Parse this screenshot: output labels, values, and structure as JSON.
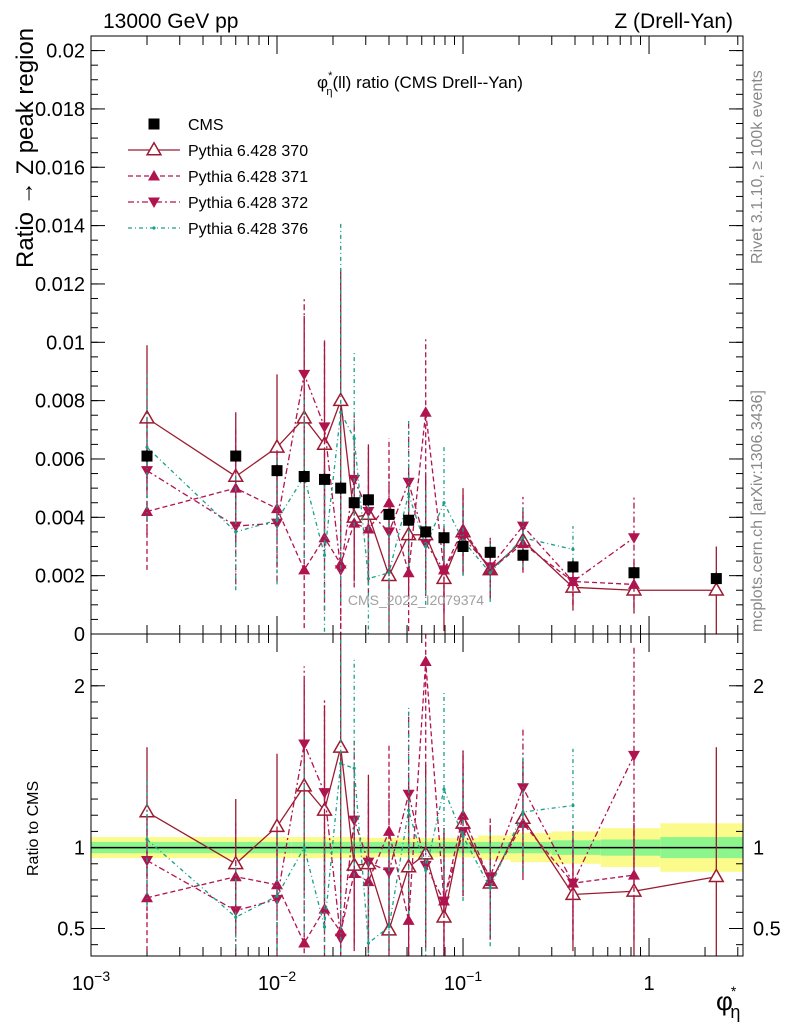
{
  "header": {
    "left": "13000 GeV pp",
    "right": "Z (Drell-Yan)"
  },
  "side_labels": {
    "rivet": "Rivet 3.1.10, ≥ 100k events",
    "mcplots": "mcplots.cern.ch [arXiv:1306.3436]"
  },
  "colors": {
    "data": "#000000",
    "p370": "#9b1b30",
    "p371": "#b0144f",
    "p372": "#b0144f",
    "p376": "#1a9f8a",
    "band_inner": "#8cf58c",
    "band_outer": "#fbfb8c"
  },
  "chart_data": [
    {
      "type": "scatter",
      "panel": "main",
      "title": "φ*η(ll) ratio (CMS Drell--Yan)",
      "ylabel": "Ratio → Z peak region",
      "watermark": "CMS_2022_I2079374",
      "xscale": "log",
      "xlim": [
        0.001,
        3.2
      ],
      "ylim": [
        0,
        0.0205
      ],
      "x_ticks": [
        0.001,
        0.01,
        0.1,
        1
      ],
      "y_ticks": [
        0,
        0.002,
        0.004,
        0.006,
        0.008,
        0.01,
        0.012,
        0.014,
        0.016,
        0.018,
        0.02
      ],
      "y_tick_labels": [
        "0",
        "0.002",
        "0.004",
        "0.006",
        "0.008",
        "0.01",
        "0.012",
        "0.014",
        "0.016",
        "0.018",
        "0.02"
      ],
      "legend": "top-left",
      "x": [
        0.002,
        0.006,
        0.01,
        0.014,
        0.018,
        0.022,
        0.026,
        0.031,
        0.04,
        0.051,
        0.063,
        0.079,
        0.1,
        0.14,
        0.21,
        0.39,
        0.83,
        2.3
      ],
      "series": [
        {
          "name": "CMS",
          "key": "data",
          "marker": "square",
          "values": [
            0.0061,
            0.0061,
            0.0056,
            0.0054,
            0.0053,
            0.005,
            0.0045,
            0.0046,
            0.0041,
            0.0039,
            0.0035,
            0.0033,
            0.003,
            0.0028,
            0.0027,
            0.0023,
            0.0021,
            0.0019
          ],
          "err": [
            0.0002,
            0.0002,
            0.0002,
            0.0002,
            0.0002,
            0.0002,
            0.0002,
            0.0002,
            0.0002,
            0.0002,
            0.0002,
            0.0002,
            0.0002,
            0.0002,
            0.0002,
            0.0002,
            0.0002,
            0.0002
          ]
        },
        {
          "name": "Pythia 6.428 370",
          "key": "p370",
          "marker": "open-triangle-up",
          "dash": "",
          "values": [
            0.0074,
            0.0054,
            0.0064,
            0.0074,
            0.0065,
            0.008,
            0.004,
            0.0041,
            0.002,
            0.0034,
            0.0034,
            0.0019,
            0.0035,
            0.0022,
            0.0032,
            0.0016,
            0.0015,
            0.0015
          ],
          "err": [
            0.0025,
            0.0022,
            0.0025,
            0.0035,
            0.0035,
            0.0045,
            0.0022,
            0.0024,
            0.002,
            0.0022,
            0.002,
            0.0018,
            0.0015,
            0.001,
            0.001,
            0.0008,
            0.0008,
            0.0015
          ]
        },
        {
          "name": "Pythia 6.428 371",
          "key": "p371",
          "marker": "triangle-up",
          "dash": "5,3",
          "values": [
            0.0042,
            0.005,
            0.0043,
            0.0022,
            0.0033,
            0.0024,
            0.0038,
            0.0036,
            0.0045,
            0.0021,
            0.0076,
            0.0022,
            0.0036,
            0.0022,
            0.0031,
            0.0018,
            0.0017,
            null
          ],
          "err": [
            0.002,
            0.002,
            0.002,
            0.002,
            0.0025,
            0.0025,
            0.0022,
            0.0022,
            0.0022,
            0.002,
            0.0025,
            0.0015,
            0.0012,
            0.001,
            0.001,
            0.0008,
            0.0008,
            null
          ]
        },
        {
          "name": "Pythia 6.428 372",
          "key": "p372",
          "marker": "triangle-down",
          "dash": "6,3,2,3",
          "values": [
            0.0056,
            0.0037,
            0.0038,
            0.0089,
            0.0071,
            0.0022,
            0.0053,
            0.0042,
            0.0035,
            0.0052,
            0.0031,
            0.0022,
            0.0033,
            0.0023,
            0.0037,
            0.0018,
            0.0033,
            null
          ],
          "err": [
            0.0022,
            0.002,
            0.002,
            0.0026,
            0.003,
            0.0025,
            0.0022,
            0.0022,
            0.002,
            0.002,
            0.0018,
            0.0014,
            0.0012,
            0.001,
            0.001,
            0.0008,
            0.0014,
            null
          ]
        },
        {
          "name": "Pythia 6.428 376",
          "key": "p376",
          "marker": "dot",
          "dash": "4,3,1,3",
          "values": [
            0.0064,
            0.0035,
            0.0039,
            0.0054,
            0.0027,
            0.0076,
            0.0067,
            0.0019,
            0.0021,
            0.0048,
            0.003,
            0.0045,
            0.0032,
            0.0021,
            0.0033,
            0.0029,
            null,
            null
          ],
          "err": [
            0.0025,
            0.002,
            0.0022,
            0.0028,
            0.003,
            0.0065,
            0.003,
            0.0025,
            0.0022,
            0.0025,
            0.002,
            0.002,
            0.0012,
            0.001,
            0.001,
            0.0008,
            null,
            null
          ]
        }
      ]
    },
    {
      "type": "scatter",
      "panel": "ratio",
      "ylabel": "Ratio to CMS",
      "xlabel": "φ*η",
      "xscale": "log",
      "xlim": [
        0.001,
        3.2
      ],
      "ylim": [
        0.33,
        2.32
      ],
      "x_ticks": [
        0.001,
        0.01,
        0.1,
        1
      ],
      "x_tick_labels": [
        "10−3",
        "10−2",
        "10−1",
        "1"
      ],
      "y_ticks": [
        0.5,
        1,
        2
      ],
      "y_tick_labels": [
        "0.5",
        "1",
        "2"
      ],
      "reference_band": {
        "edges": [
          0.001,
          0.004,
          0.012,
          0.03,
          0.07,
          0.12,
          0.18,
          0.3,
          0.55,
          1.15,
          3.2
        ],
        "inner": [
          0.035,
          0.035,
          0.035,
          0.035,
          0.035,
          0.035,
          0.035,
          0.045,
          0.05,
          0.065
        ],
        "outer": [
          0.065,
          0.065,
          0.065,
          0.06,
          0.06,
          0.075,
          0.09,
          0.1,
          0.12,
          0.15
        ]
      },
      "x": [
        0.002,
        0.006,
        0.01,
        0.014,
        0.018,
        0.022,
        0.026,
        0.031,
        0.04,
        0.051,
        0.063,
        0.079,
        0.1,
        0.14,
        0.21,
        0.39,
        0.83,
        2.3
      ],
      "series": [
        {
          "name": "Pythia 6.428 370",
          "key": "p370",
          "marker": "open-triangle-up",
          "dash": "",
          "values": [
            1.22,
            0.9,
            1.13,
            1.38,
            1.23,
            1.62,
            0.89,
            0.9,
            0.49,
            0.88,
            0.96,
            0.57,
            1.15,
            0.78,
            1.18,
            0.71,
            0.73,
            0.82
          ],
          "err": [
            0.4,
            0.4,
            0.45,
            0.65,
            0.65,
            0.9,
            0.5,
            0.55,
            0.5,
            0.55,
            0.55,
            0.55,
            0.45,
            0.35,
            0.35,
            0.35,
            0.4,
            0.8
          ]
        },
        {
          "name": "Pythia 6.428 371",
          "key": "p371",
          "marker": "triangle-up",
          "dash": "5,3",
          "values": [
            0.69,
            0.82,
            0.77,
            0.41,
            0.62,
            0.48,
            0.84,
            0.79,
            1.1,
            0.55,
            2.15,
            0.67,
            1.2,
            0.79,
            1.15,
            0.78,
            0.83,
            null
          ],
          "err": [
            0.33,
            0.33,
            0.36,
            0.36,
            0.45,
            0.5,
            0.48,
            0.48,
            0.54,
            0.52,
            0.7,
            0.45,
            0.4,
            0.35,
            0.35,
            0.35,
            0.4,
            null
          ]
        },
        {
          "name": "Pythia 6.428 372",
          "key": "p372",
          "marker": "triangle-down",
          "dash": "6,3,2,3",
          "values": [
            0.92,
            0.61,
            0.68,
            1.64,
            1.34,
            0.44,
            1.17,
            0.91,
            0.85,
            1.33,
            0.89,
            0.67,
            1.1,
            0.82,
            1.37,
            0.78,
            1.57,
            null
          ],
          "err": [
            0.36,
            0.33,
            0.36,
            0.48,
            0.57,
            0.5,
            0.49,
            0.48,
            0.49,
            0.51,
            0.51,
            0.42,
            0.4,
            0.36,
            0.37,
            0.35,
            0.67,
            null
          ]
        },
        {
          "name": "Pythia 6.428 376",
          "key": "p376",
          "marker": "dot",
          "dash": "4,3,1,3",
          "values": [
            1.05,
            0.57,
            0.7,
            1.0,
            0.51,
            1.52,
            1.49,
            0.41,
            0.51,
            1.23,
            0.86,
            1.36,
            1.07,
            0.75,
            1.22,
            1.26,
            null,
            null
          ],
          "err": [
            0.41,
            0.33,
            0.39,
            0.52,
            0.57,
            1.3,
            0.67,
            0.54,
            0.54,
            0.64,
            0.57,
            0.61,
            0.4,
            0.36,
            0.37,
            0.35,
            null,
            null
          ]
        }
      ]
    }
  ]
}
